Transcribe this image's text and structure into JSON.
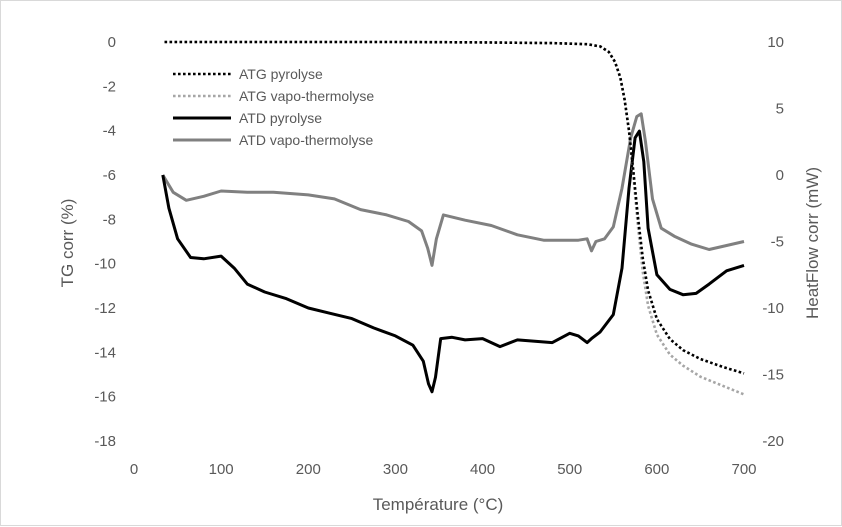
{
  "chart_data": {
    "type": "line",
    "xlabel": "Température (°C)",
    "ylabel": "TG corr (%)",
    "y2label": "HeatFlow corr (mW)",
    "xlim": [
      0,
      700
    ],
    "ylim": [
      -18,
      0
    ],
    "y2lim": [
      -20,
      10
    ],
    "xticks": [
      "0",
      "100",
      "200",
      "300",
      "400",
      "500",
      "600",
      "700"
    ],
    "yticks": [
      "0",
      "-2",
      "-4",
      "-6",
      "-8",
      "-10",
      "-12",
      "-14",
      "-16",
      "-18"
    ],
    "y2ticks": [
      "10",
      "5",
      "0",
      "-5",
      "-10",
      "-15",
      "-20"
    ],
    "grid": false,
    "legend_position": "top-left",
    "series": [
      {
        "name": "ATG pyrolyse",
        "axis": "left",
        "style": "dotted",
        "color": "#000000",
        "x": [
          35,
          100,
          200,
          300,
          400,
          480,
          520,
          535,
          545,
          552,
          558,
          563,
          568,
          573,
          578,
          584,
          590,
          600,
          615,
          630,
          650,
          675,
          700
        ],
        "y": [
          0,
          0,
          0,
          0,
          -0.02,
          -0.05,
          -0.1,
          -0.2,
          -0.45,
          -0.9,
          -1.6,
          -2.6,
          -4.0,
          -5.8,
          -7.8,
          -9.8,
          -11.2,
          -12.5,
          -13.4,
          -13.9,
          -14.3,
          -14.65,
          -14.95
        ]
      },
      {
        "name": "ATG vapo-thermolyse",
        "axis": "left",
        "style": "dotted",
        "color": "#a6a6a6",
        "x": [
          35,
          100,
          200,
          300,
          400,
          480,
          520,
          535,
          545,
          552,
          558,
          563,
          568,
          573,
          578,
          584,
          590,
          600,
          615,
          630,
          650,
          675,
          700
        ],
        "y": [
          0,
          0,
          0,
          0,
          -0.02,
          -0.05,
          -0.1,
          -0.2,
          -0.45,
          -0.9,
          -1.6,
          -2.6,
          -4.0,
          -6.0,
          -8.2,
          -10.4,
          -11.9,
          -13.2,
          -14.1,
          -14.6,
          -15.1,
          -15.5,
          -15.9
        ]
      },
      {
        "name": "ATD pyrolyse",
        "axis": "right",
        "style": "solid",
        "color": "#000000",
        "x": [
          33,
          40,
          50,
          65,
          80,
          100,
          115,
          130,
          150,
          175,
          200,
          225,
          250,
          275,
          300,
          320,
          332,
          338,
          342,
          346,
          352,
          365,
          380,
          400,
          420,
          440,
          460,
          480,
          500,
          510,
          520,
          525,
          535,
          550,
          560,
          568,
          575,
          580,
          585,
          590,
          600,
          615,
          630,
          645,
          660,
          680,
          700
        ],
        "y": [
          0,
          -2.5,
          -4.8,
          -6.2,
          -6.3,
          -6.1,
          -7,
          -8.2,
          -8.8,
          -9.3,
          -10,
          -10.4,
          -10.8,
          -11.5,
          -12.1,
          -12.8,
          -14,
          -15.7,
          -16.3,
          -15.2,
          -12.3,
          -12.2,
          -12.4,
          -12.3,
          -12.9,
          -12.4,
          -12.5,
          -12.6,
          -11.9,
          -12.1,
          -12.6,
          -12.3,
          -11.8,
          -10.5,
          -7.0,
          -1.0,
          2.8,
          3.3,
          1.0,
          -4.0,
          -7.5,
          -8.6,
          -9.0,
          -8.9,
          -8.2,
          -7.2,
          -6.8
        ]
      },
      {
        "name": "ATD vapo-thermolyse",
        "axis": "right",
        "style": "solid",
        "color": "#808080",
        "x": [
          33,
          45,
          60,
          80,
          100,
          130,
          160,
          200,
          230,
          260,
          290,
          315,
          330,
          337,
          342,
          347,
          355,
          380,
          410,
          440,
          470,
          490,
          510,
          520,
          525,
          530,
          540,
          550,
          560,
          570,
          577,
          582,
          587,
          595,
          605,
          620,
          640,
          660,
          680,
          700
        ],
        "y": [
          0,
          -1.3,
          -1.9,
          -1.6,
          -1.2,
          -1.3,
          -1.3,
          -1.5,
          -1.8,
          -2.6,
          -3.0,
          -3.5,
          -4.2,
          -5.5,
          -6.8,
          -4.8,
          -3.0,
          -3.4,
          -3.8,
          -4.5,
          -4.9,
          -4.9,
          -4.9,
          -4.8,
          -5.7,
          -5.0,
          -4.8,
          -3.9,
          -1.0,
          2.8,
          4.4,
          4.6,
          2.5,
          -1.8,
          -4.0,
          -4.6,
          -5.2,
          -5.6,
          -5.3,
          -5.0
        ]
      }
    ]
  }
}
